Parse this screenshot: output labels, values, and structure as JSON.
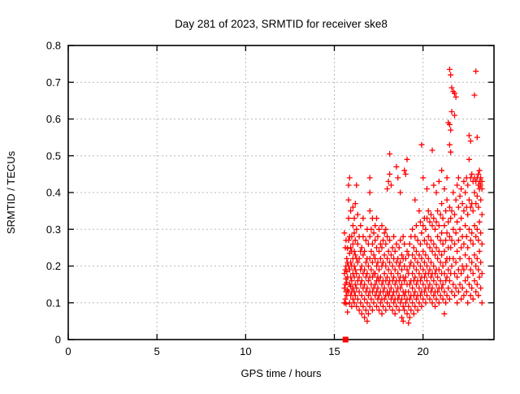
{
  "window": {
    "background": "#ffffff"
  },
  "chart_data": {
    "type": "scatter",
    "title": "Day 281 of 2023, SRMTID for receiver ske8",
    "xlabel": "GPS time / hours",
    "ylabel": "SRMTID / TECUs",
    "xlim": [
      0,
      24
    ],
    "ylim": [
      0,
      0.8
    ],
    "xticks": [
      0,
      5,
      10,
      15,
      20
    ],
    "yticks": [
      0,
      0.1,
      0.2,
      0.3,
      0.4,
      0.5,
      0.6,
      0.7,
      0.8
    ],
    "grid": "dotted",
    "legend": "none",
    "colors": {
      "marker": "#ff0000",
      "grid": "#b9b9b9",
      "frame": "#000000",
      "text": "#000000"
    },
    "marker": "plus-cross",
    "square_series": {
      "marker": "filled-square",
      "points": [
        [
          15.63,
          0.0
        ]
      ]
    },
    "clusters": [
      [
        15.57,
        [
          0.1,
          0.14,
          0.18,
          0.29
        ]
      ],
      [
        15.62,
        [
          0.11,
          0.15,
          0.19,
          0.25
        ]
      ],
      [
        15.66,
        [
          0.097,
          0.13,
          0.165,
          0.2,
          0.27
        ]
      ],
      [
        15.7,
        [
          0.12,
          0.155,
          0.185,
          0.22
        ]
      ],
      [
        15.74,
        [
          0.075,
          0.135,
          0.17,
          0.21,
          0.248
        ]
      ],
      [
        15.8,
        [
          0.13,
          0.2,
          0.27,
          0.33,
          0.38,
          0.42
        ]
      ],
      [
        15.86,
        [
          0.1,
          0.15,
          0.19,
          0.235,
          0.28,
          0.44
        ]
      ],
      [
        15.92,
        [
          0.12,
          0.145,
          0.17,
          0.21,
          0.25,
          0.35
        ]
      ],
      [
        15.98,
        [
          0.09,
          0.13,
          0.16,
          0.2,
          0.24,
          0.28
        ]
      ],
      [
        16.05,
        [
          0.11,
          0.14,
          0.18,
          0.22,
          0.26,
          0.31,
          0.36
        ]
      ],
      [
        16.12,
        [
          0.1,
          0.13,
          0.17,
          0.2,
          0.24,
          0.29,
          0.33
        ]
      ],
      [
        16.18,
        [
          0.12,
          0.15,
          0.19,
          0.23,
          0.27,
          0.37
        ]
      ],
      [
        16.25,
        [
          0.09,
          0.14,
          0.18,
          0.22,
          0.3,
          0.42
        ]
      ],
      [
        16.32,
        [
          0.11,
          0.16,
          0.21,
          0.26,
          0.34
        ]
      ],
      [
        16.4,
        [
          0.08,
          0.13,
          0.17,
          0.22,
          0.28
        ]
      ],
      [
        16.48,
        [
          0.1,
          0.15,
          0.19,
          0.24,
          0.31
        ]
      ],
      [
        16.55,
        [
          0.07,
          0.12,
          0.16,
          0.2,
          0.25
        ]
      ],
      [
        16.62,
        [
          0.09,
          0.14,
          0.18,
          0.23,
          0.28,
          0.33
        ]
      ],
      [
        16.7,
        [
          0.06,
          0.11,
          0.15,
          0.19,
          0.24
        ]
      ],
      [
        16.78,
        [
          0.08,
          0.13,
          0.17,
          0.21,
          0.27
        ]
      ],
      [
        16.85,
        [
          0.05,
          0.1,
          0.14,
          0.18,
          0.22,
          0.3
        ]
      ],
      [
        16.92,
        [
          0.07,
          0.12,
          0.16,
          0.2,
          0.26
        ]
      ],
      [
        17.0,
        [
          0.09,
          0.13,
          0.17,
          0.22,
          0.28,
          0.35,
          0.4,
          0.44
        ]
      ],
      [
        17.08,
        [
          0.11,
          0.15,
          0.19,
          0.24,
          0.3
        ]
      ],
      [
        17.15,
        [
          0.08,
          0.13,
          0.17,
          0.21,
          0.26,
          0.33
        ]
      ],
      [
        17.22,
        [
          0.1,
          0.14,
          0.18,
          0.23,
          0.29
        ]
      ],
      [
        17.3,
        [
          0.12,
          0.15,
          0.18,
          0.22,
          0.27,
          0.31
        ]
      ],
      [
        17.38,
        [
          0.09,
          0.13,
          0.16,
          0.2,
          0.25,
          0.33
        ]
      ],
      [
        17.45,
        [
          0.11,
          0.14,
          0.17,
          0.21,
          0.28
        ]
      ],
      [
        17.52,
        [
          0.08,
          0.12,
          0.16,
          0.19,
          0.24,
          0.3
        ]
      ],
      [
        17.6,
        [
          0.1,
          0.13,
          0.17,
          0.22,
          0.26
        ]
      ],
      [
        17.68,
        [
          0.07,
          0.11,
          0.15,
          0.2,
          0.25,
          0.31
        ]
      ],
      [
        17.75,
        [
          0.09,
          0.13,
          0.16,
          0.21,
          0.27
        ]
      ],
      [
        17.82,
        [
          0.11,
          0.14,
          0.18,
          0.23,
          0.29
        ]
      ],
      [
        17.9,
        [
          0.08,
          0.12,
          0.16,
          0.2,
          0.26,
          0.3
        ]
      ],
      [
        17.98,
        [
          0.1,
          0.13,
          0.17,
          0.22,
          0.28,
          0.41
        ]
      ],
      [
        18.05,
        [
          0.12,
          0.15,
          0.19,
          0.24,
          0.43
        ]
      ],
      [
        18.12,
        [
          0.09,
          0.13,
          0.16,
          0.21,
          0.27,
          0.45,
          0.505
        ]
      ],
      [
        18.2,
        [
          0.11,
          0.14,
          0.18,
          0.23,
          0.42
        ]
      ],
      [
        18.28,
        [
          0.08,
          0.12,
          0.16,
          0.2,
          0.25
        ]
      ],
      [
        18.35,
        [
          0.1,
          0.13,
          0.17,
          0.22,
          0.28
        ]
      ],
      [
        18.42,
        [
          0.07,
          0.11,
          0.15,
          0.19,
          0.24
        ]
      ],
      [
        18.5,
        [
          0.09,
          0.13,
          0.16,
          0.21,
          0.26,
          0.47
        ]
      ],
      [
        18.58,
        [
          0.11,
          0.14,
          0.18,
          0.22,
          0.44
        ]
      ],
      [
        18.65,
        [
          0.08,
          0.12,
          0.16,
          0.2,
          0.25
        ]
      ],
      [
        18.72,
        [
          0.1,
          0.14,
          0.17,
          0.21,
          0.27,
          0.4
        ]
      ],
      [
        18.8,
        [
          0.06,
          0.11,
          0.15,
          0.19,
          0.23
        ]
      ],
      [
        18.88,
        [
          0.05,
          0.09,
          0.13,
          0.17,
          0.22,
          0.28
        ]
      ],
      [
        18.95,
        [
          0.08,
          0.12,
          0.16,
          0.2,
          0.26,
          0.46
        ]
      ],
      [
        19.02,
        [
          0.1,
          0.13,
          0.17,
          0.22,
          0.45
        ]
      ],
      [
        19.1,
        [
          0.07,
          0.11,
          0.15,
          0.19,
          0.24,
          0.49
        ]
      ],
      [
        19.18,
        [
          0.045,
          0.09,
          0.13,
          0.18,
          0.23
        ]
      ],
      [
        19.25,
        [
          0.06,
          0.11,
          0.15,
          0.2,
          0.26
        ]
      ],
      [
        19.32,
        [
          0.08,
          0.12,
          0.16,
          0.21,
          0.28
        ]
      ],
      [
        19.4,
        [
          0.1,
          0.14,
          0.18,
          0.23,
          0.3
        ]
      ],
      [
        19.48,
        [
          0.07,
          0.12,
          0.16,
          0.2,
          0.25
        ]
      ],
      [
        19.55,
        [
          0.09,
          0.13,
          0.17,
          0.22,
          0.28,
          0.38
        ]
      ],
      [
        19.62,
        [
          0.11,
          0.15,
          0.19,
          0.24,
          0.31
        ]
      ],
      [
        19.7,
        [
          0.08,
          0.12,
          0.16,
          0.21,
          0.27
        ]
      ],
      [
        19.78,
        [
          0.1,
          0.14,
          0.18,
          0.23,
          0.35
        ]
      ],
      [
        19.85,
        [
          0.12,
          0.16,
          0.2,
          0.26,
          0.32
        ]
      ],
      [
        19.92,
        [
          0.09,
          0.13,
          0.17,
          0.22,
          0.29,
          0.53
        ]
      ],
      [
        20.0,
        [
          0.11,
          0.15,
          0.19,
          0.24,
          0.31,
          0.44
        ]
      ],
      [
        20.08,
        [
          0.13,
          0.17,
          0.21,
          0.27,
          0.33
        ]
      ],
      [
        20.15,
        [
          0.1,
          0.14,
          0.18,
          0.23,
          0.3
        ]
      ],
      [
        20.22,
        [
          0.12,
          0.16,
          0.2,
          0.26,
          0.33,
          0.41
        ]
      ],
      [
        20.3,
        [
          0.14,
          0.18,
          0.22,
          0.28,
          0.35
        ]
      ],
      [
        20.38,
        [
          0.11,
          0.15,
          0.19,
          0.25,
          0.32
        ]
      ],
      [
        20.45,
        [
          0.13,
          0.17,
          0.21,
          0.27,
          0.34
        ]
      ],
      [
        20.52,
        [
          0.1,
          0.14,
          0.18,
          0.24,
          0.31,
          0.515
        ]
      ],
      [
        20.6,
        [
          0.12,
          0.16,
          0.2,
          0.26,
          0.33,
          0.42
        ]
      ],
      [
        20.68,
        [
          0.09,
          0.13,
          0.18,
          0.23,
          0.3
        ]
      ],
      [
        20.75,
        [
          0.11,
          0.15,
          0.19,
          0.25,
          0.32,
          0.4
        ]
      ],
      [
        20.82,
        [
          0.13,
          0.17,
          0.22,
          0.28,
          0.35
        ]
      ],
      [
        20.9,
        [
          0.1,
          0.14,
          0.19,
          0.24,
          0.31,
          0.43
        ]
      ],
      [
        20.98,
        [
          0.12,
          0.16,
          0.21,
          0.27,
          0.34
        ]
      ],
      [
        21.05,
        [
          0.14,
          0.18,
          0.23,
          0.29,
          0.37,
          0.46
        ]
      ],
      [
        21.12,
        [
          0.11,
          0.15,
          0.2,
          0.26,
          0.33
        ]
      ],
      [
        21.2,
        [
          0.07,
          0.13,
          0.18,
          0.24,
          0.31,
          0.41
        ]
      ],
      [
        21.28,
        [
          0.1,
          0.16,
          0.21,
          0.27,
          0.35
        ]
      ],
      [
        21.35,
        [
          0.12,
          0.17,
          0.22,
          0.29,
          0.38,
          0.44
        ]
      ],
      [
        21.42,
        [
          0.14,
          0.19,
          0.25,
          0.32,
          0.59
        ]
      ],
      [
        21.5,
        [
          0.11,
          0.16,
          0.22,
          0.28,
          0.36,
          0.53,
          0.585,
          0.735
        ]
      ],
      [
        21.56,
        [
          0.18,
          0.25,
          0.33,
          0.51,
          0.57,
          0.72
        ]
      ],
      [
        21.62,
        [
          0.13,
          0.2,
          0.27,
          0.35,
          0.62,
          0.685
        ]
      ],
      [
        21.7,
        [
          0.15,
          0.22,
          0.3,
          0.4,
          0.675
        ]
      ],
      [
        21.78,
        [
          0.12,
          0.18,
          0.26,
          0.34,
          0.61,
          0.67
        ]
      ],
      [
        21.85,
        [
          0.14,
          0.21,
          0.29,
          0.38,
          0.66
        ]
      ],
      [
        21.92,
        [
          0.1,
          0.17,
          0.24,
          0.32,
          0.42
        ]
      ],
      [
        22.0,
        [
          0.13,
          0.19,
          0.27,
          0.36,
          0.44
        ]
      ],
      [
        22.08,
        [
          0.15,
          0.22,
          0.3,
          0.39
        ]
      ],
      [
        22.15,
        [
          0.11,
          0.18,
          0.25,
          0.33,
          0.41
        ]
      ],
      [
        22.22,
        [
          0.14,
          0.2,
          0.28,
          0.37
        ]
      ],
      [
        22.3,
        [
          0.12,
          0.19,
          0.26,
          0.35,
          0.43
        ]
      ],
      [
        22.38,
        [
          0.16,
          0.23,
          0.31,
          0.4
        ]
      ],
      [
        22.45,
        [
          0.13,
          0.2,
          0.28,
          0.36,
          0.44
        ]
      ],
      [
        22.52,
        [
          0.1,
          0.17,
          0.25,
          0.34,
          0.42
        ]
      ],
      [
        22.6,
        [
          0.15,
          0.22,
          0.3,
          0.38,
          0.49,
          0.555
        ]
      ],
      [
        22.68,
        [
          0.12,
          0.19,
          0.27,
          0.36,
          0.44,
          0.54
        ]
      ],
      [
        22.75,
        [
          0.14,
          0.21,
          0.29,
          0.37,
          0.45
        ]
      ],
      [
        22.82,
        [
          0.11,
          0.18,
          0.26,
          0.35,
          0.43
        ]
      ],
      [
        22.9,
        [
          0.16,
          0.23,
          0.31,
          0.4,
          0.44,
          0.665
        ]
      ],
      [
        22.98,
        [
          0.13,
          0.2,
          0.28,
          0.37,
          0.43,
          0.73
        ]
      ],
      [
        23.05,
        [
          0.15,
          0.22,
          0.3,
          0.39,
          0.44,
          0.55
        ]
      ],
      [
        23.12,
        [
          0.12,
          0.19,
          0.27,
          0.36,
          0.42,
          0.45
        ]
      ],
      [
        23.18,
        [
          0.17,
          0.24,
          0.32,
          0.41,
          0.43,
          0.46
        ]
      ],
      [
        23.25,
        [
          0.14,
          0.21,
          0.29,
          0.38,
          0.42,
          0.44
        ]
      ],
      [
        23.32,
        [
          0.1,
          0.18,
          0.26,
          0.34,
          0.41,
          0.43
        ]
      ]
    ]
  }
}
